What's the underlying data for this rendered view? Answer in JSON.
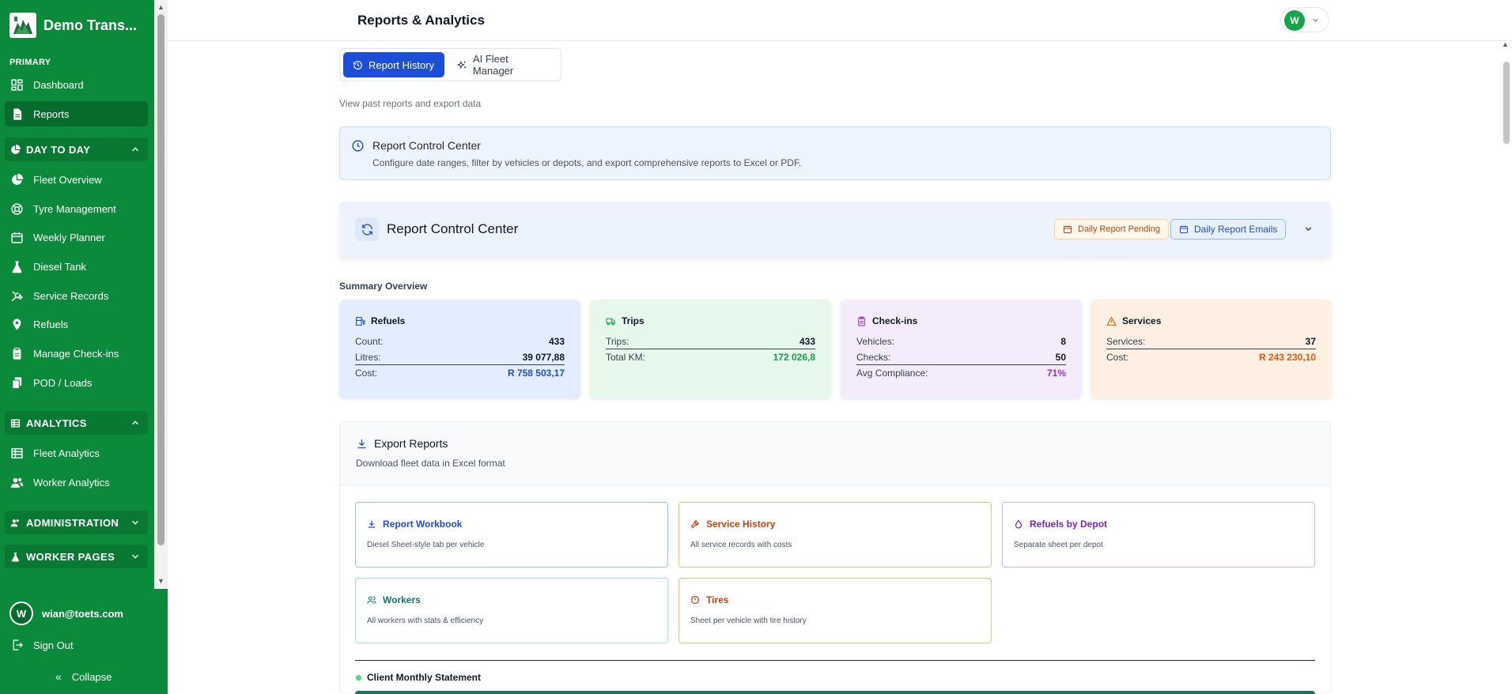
{
  "sidebar": {
    "brand": "Demo Trans...",
    "primary_label": "PRIMARY",
    "primary_items": [
      {
        "label": "Dashboard",
        "icon": "grid-icon"
      },
      {
        "label": "Reports",
        "icon": "file-icon",
        "active": true
      }
    ],
    "day_to_day": {
      "label": "DAY TO DAY",
      "items": [
        {
          "label": "Fleet Overview",
          "icon": "pie-chart-icon"
        },
        {
          "label": "Tyre Management",
          "icon": "life-buoy-icon"
        },
        {
          "label": "Weekly Planner",
          "icon": "calendar-icon"
        },
        {
          "label": "Diesel Tank",
          "icon": "flask-icon"
        },
        {
          "label": "Service Records",
          "icon": "tools-icon"
        },
        {
          "label": "Refuels",
          "icon": "map-pin-icon"
        },
        {
          "label": "Manage Check-ins",
          "icon": "clipboard-icon"
        },
        {
          "label": "POD / Loads",
          "icon": "copy-icon"
        }
      ]
    },
    "analytics": {
      "label": "ANALYTICS",
      "items": [
        {
          "label": "Fleet Analytics",
          "icon": "table-icon"
        },
        {
          "label": "Worker Analytics",
          "icon": "users-icon"
        }
      ]
    },
    "administration": {
      "label": "ADMINISTRATION"
    },
    "worker_pages": {
      "label": "WORKER PAGES"
    },
    "user": {
      "initial": "W",
      "email": "wian@toets.com"
    },
    "sign_out": "Sign Out",
    "collapse": "Collapse"
  },
  "header": {
    "title": "Reports & Analytics",
    "user_initial": "W"
  },
  "tabs": [
    {
      "label": "Report History",
      "active": true
    },
    {
      "label": "AI Fleet Manager",
      "active": false
    }
  ],
  "subtitle": "View past reports and export data",
  "info_box": {
    "title": "Report Control Center",
    "description": "Configure date ranges, filter by vehicles or depots, and export comprehensive reports to Excel or PDF."
  },
  "control_center": {
    "title": "Report Control Center",
    "pending_badge": "Daily Report Pending",
    "emails_button": "Daily Report Emails"
  },
  "summary": {
    "label": "Summary Overview",
    "refuels": {
      "title": "Refuels",
      "count_label": "Count:",
      "count": "433",
      "litres_label": "Litres:",
      "litres": "39 077,88",
      "cost_label": "Cost:",
      "cost": "R 758 503,17"
    },
    "trips": {
      "title": "Trips",
      "trips_label": "Trips:",
      "trips": "433",
      "km_label": "Total KM:",
      "km": "172 026,8"
    },
    "checkins": {
      "title": "Check-ins",
      "vehicles_label": "Vehicles:",
      "vehicles": "8",
      "checks_label": "Checks:",
      "checks": "50",
      "compliance_label": "Avg Compliance:",
      "compliance": "71%"
    },
    "services": {
      "title": "Services",
      "services_label": "Services:",
      "services": "37",
      "cost_label": "Cost:",
      "cost": "R 243 230,10"
    }
  },
  "export": {
    "title": "Export Reports",
    "description": "Download fleet data in Excel format",
    "cards": [
      {
        "title": "Report Workbook",
        "desc": "Diesel Sheet-style tab per vehicle",
        "color": "#1d4ed8"
      },
      {
        "title": "Service History",
        "desc": "All service records with costs",
        "color": "#c2410c"
      },
      {
        "title": "Refuels by Depot",
        "desc": "Separate sheet per depot",
        "color": "#7e22ce"
      },
      {
        "title": "Workers",
        "desc": "All workers with stats & efficiency",
        "color": "#0f766e"
      },
      {
        "title": "Tires",
        "desc": "Sheet per vehicle with tire history",
        "color": "#c2410c"
      }
    ],
    "client_statement": "Client Monthly Statement"
  },
  "colors": {
    "sidebar": "#0a8a3a",
    "accent": "#1d4ed8"
  }
}
